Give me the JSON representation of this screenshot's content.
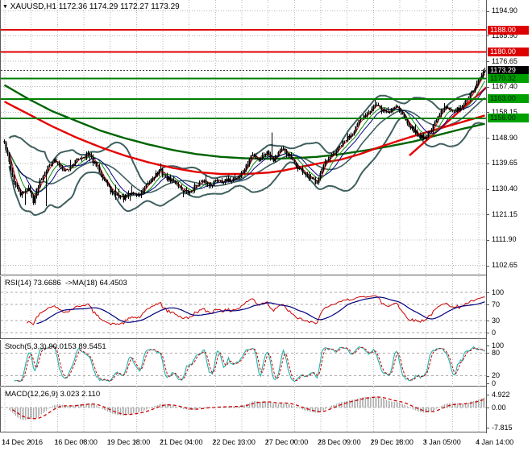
{
  "header": {
    "dropdown_icon": "▼",
    "symbol": "XAUUSD,H1",
    "ohlc": "1172.36 1174.29 1172.27 1173.29"
  },
  "chart_data": {
    "type": "candlestick",
    "symbol": "XAUUSD",
    "timeframe": "H1",
    "current": {
      "open": 1172.36,
      "high": 1174.29,
      "low": 1172.27,
      "close": 1173.29
    },
    "x_labels": [
      "14 Dec 2016",
      "16 Dec 08:00",
      "19 Dec 18:00",
      "21 Dec 04:00",
      "22 Dec 13:00",
      "27 Dec 00:00",
      "28 Dec 09:00",
      "29 Dec 18:00",
      "3 Jan 05:00",
      "4 Jan 14:00"
    ],
    "y_ticks": [
      1194.9,
      1185.9,
      1176.65,
      1167.4,
      1158.15,
      1148.9,
      1139.65,
      1130.4,
      1121.15,
      1111.9,
      1102.65
    ],
    "levels": [
      {
        "price": 1188.0,
        "label": "1188.00",
        "type": "resistance",
        "color": "#dd0000"
      },
      {
        "price": 1180.0,
        "label": "1180.00",
        "type": "resistance",
        "color": "#dd0000"
      },
      {
        "price": 1173.29,
        "label": "1173.29",
        "type": "current",
        "color": "#000000"
      },
      {
        "price": 1170.32,
        "label": "1170.32",
        "type": "support",
        "color": "#008000"
      },
      {
        "price": 1163.0,
        "label": "1163.00",
        "type": "support",
        "color": "#008000"
      },
      {
        "price": 1156.0,
        "label": "1156.00",
        "type": "support",
        "color": "#008000"
      }
    ],
    "close_path": [
      [
        0.0,
        1147
      ],
      [
        0.01,
        1140
      ],
      [
        0.022,
        1132
      ],
      [
        0.035,
        1128
      ],
      [
        0.05,
        1131
      ],
      [
        0.06,
        1126
      ],
      [
        0.075,
        1134
      ],
      [
        0.09,
        1138
      ],
      [
        0.1,
        1141
      ],
      [
        0.115,
        1139
      ],
      [
        0.13,
        1137
      ],
      [
        0.145,
        1140
      ],
      [
        0.16,
        1142
      ],
      [
        0.175,
        1143
      ],
      [
        0.19,
        1139
      ],
      [
        0.205,
        1135
      ],
      [
        0.22,
        1130
      ],
      [
        0.235,
        1128
      ],
      [
        0.25,
        1127
      ],
      [
        0.265,
        1129
      ],
      [
        0.28,
        1128
      ],
      [
        0.295,
        1131
      ],
      [
        0.31,
        1135
      ],
      [
        0.325,
        1137
      ],
      [
        0.34,
        1134
      ],
      [
        0.355,
        1133
      ],
      [
        0.37,
        1130
      ],
      [
        0.385,
        1129
      ],
      [
        0.4,
        1132
      ],
      [
        0.415,
        1133
      ],
      [
        0.43,
        1132
      ],
      [
        0.445,
        1134
      ],
      [
        0.46,
        1133
      ],
      [
        0.475,
        1134
      ],
      [
        0.49,
        1135
      ],
      [
        0.505,
        1139
      ],
      [
        0.515,
        1143
      ],
      [
        0.53,
        1141
      ],
      [
        0.545,
        1144
      ],
      [
        0.56,
        1141
      ],
      [
        0.575,
        1145
      ],
      [
        0.59,
        1143
      ],
      [
        0.605,
        1139
      ],
      [
        0.62,
        1137
      ],
      [
        0.635,
        1134
      ],
      [
        0.65,
        1133
      ],
      [
        0.665,
        1139
      ],
      [
        0.68,
        1142
      ],
      [
        0.695,
        1145
      ],
      [
        0.71,
        1148
      ],
      [
        0.725,
        1151
      ],
      [
        0.74,
        1155
      ],
      [
        0.755,
        1158
      ],
      [
        0.77,
        1161
      ],
      [
        0.785,
        1159
      ],
      [
        0.8,
        1158
      ],
      [
        0.815,
        1161
      ],
      [
        0.83,
        1157
      ],
      [
        0.845,
        1153
      ],
      [
        0.86,
        1150
      ],
      [
        0.875,
        1149
      ],
      [
        0.89,
        1152
      ],
      [
        0.905,
        1157
      ],
      [
        0.92,
        1161
      ],
      [
        0.935,
        1158
      ],
      [
        0.95,
        1160
      ],
      [
        0.965,
        1163
      ],
      [
        0.98,
        1167
      ],
      [
        1.0,
        1173.29
      ]
    ],
    "spikes": [
      {
        "frac": 0.558,
        "type": "high",
        "price": 1150.8
      },
      {
        "frac": 0.042,
        "type": "low",
        "price": 1124.6
      },
      {
        "frac": 0.087,
        "type": "low",
        "price": 1124.2
      },
      {
        "frac": 0.262,
        "type": "low",
        "price": 1126.0
      },
      {
        "frac": 1.0,
        "type": "high",
        "price": 1174.29
      },
      {
        "frac": 1.0,
        "type": "low",
        "price": 1172.27
      }
    ],
    "overlays": {
      "slow_ma_green": [
        [
          0,
          1168
        ],
        [
          0.05,
          1163
        ],
        [
          0.1,
          1158.5
        ],
        [
          0.15,
          1155
        ],
        [
          0.2,
          1151.5
        ],
        [
          0.25,
          1148.8
        ],
        [
          0.3,
          1146.5
        ],
        [
          0.35,
          1144.5
        ],
        [
          0.4,
          1143
        ],
        [
          0.45,
          1142
        ],
        [
          0.5,
          1141.5
        ],
        [
          0.55,
          1141.3
        ],
        [
          0.6,
          1141.5
        ],
        [
          0.65,
          1142
        ],
        [
          0.7,
          1143
        ],
        [
          0.75,
          1144.3
        ],
        [
          0.8,
          1145.8
        ],
        [
          0.85,
          1147.5
        ],
        [
          0.9,
          1149.8
        ],
        [
          0.95,
          1152
        ],
        [
          1.0,
          1154
        ]
      ],
      "slow_ma_red": [
        [
          0,
          1162
        ],
        [
          0.05,
          1157.5
        ],
        [
          0.1,
          1153
        ],
        [
          0.15,
          1149
        ],
        [
          0.2,
          1145.5
        ],
        [
          0.25,
          1142.5
        ],
        [
          0.3,
          1140
        ],
        [
          0.35,
          1138
        ],
        [
          0.4,
          1136.5
        ],
        [
          0.45,
          1135.8
        ],
        [
          0.5,
          1135.8
        ],
        [
          0.55,
          1136.3
        ],
        [
          0.58,
          1137
        ],
        [
          0.62,
          1138.5
        ],
        [
          0.66,
          1139.8
        ],
        [
          0.7,
          1141
        ],
        [
          0.74,
          1143
        ],
        [
          0.78,
          1145.5
        ],
        [
          0.82,
          1147.8
        ],
        [
          0.86,
          1150
        ],
        [
          0.9,
          1152
        ],
        [
          0.94,
          1154
        ],
        [
          1.0,
          1157
        ]
      ],
      "trendline_red": [
        [
          0.843,
          1142.5
        ],
        [
          1.012,
          1168.5
        ]
      ]
    },
    "indicators": {
      "rsi": {
        "title": "RSI(14) 73.6686  ->MA(18) 64.4503",
        "value": 73.6686,
        "ma_value": 64.4503,
        "axis_labels": [
          100,
          70,
          30,
          0
        ],
        "dashed_levels": [
          100,
          70,
          30,
          0
        ]
      },
      "stoch": {
        "title": "Stoch(5,3,3) 90.0153 89.5451",
        "value": 90.0153,
        "signal": 89.5451,
        "axis_labels": [
          100,
          80,
          20,
          0
        ],
        "dashed_levels": [
          80,
          20
        ]
      },
      "macd": {
        "title": "MACD(12,26,9) 3.023 2.110",
        "value": 3.023,
        "signal": 2.11,
        "axis_labels": [
          "4.922",
          "0.00",
          "-7.815"
        ],
        "axis_values": [
          4.922,
          0,
          -7.815
        ]
      }
    },
    "colors": {
      "candle": "#000000",
      "bollinger": "#3f5f5f",
      "fast_ma_red": "#d00000",
      "fast_ma_green": "#0a8f0a",
      "fast_ma_blue": "#000080",
      "slow_ma_red": "#e60000",
      "slow_ma_green": "#006400",
      "support": "#008000",
      "resistance": "#e00000",
      "grid": "#b8b8b8",
      "rsi_line": "#cc0000",
      "rsi_ma": "#000080",
      "stoch_k": "#20b2aa",
      "stoch_d": "#cc0000",
      "macd_hist": "#ababab",
      "macd_signal": "#cc0000"
    }
  }
}
